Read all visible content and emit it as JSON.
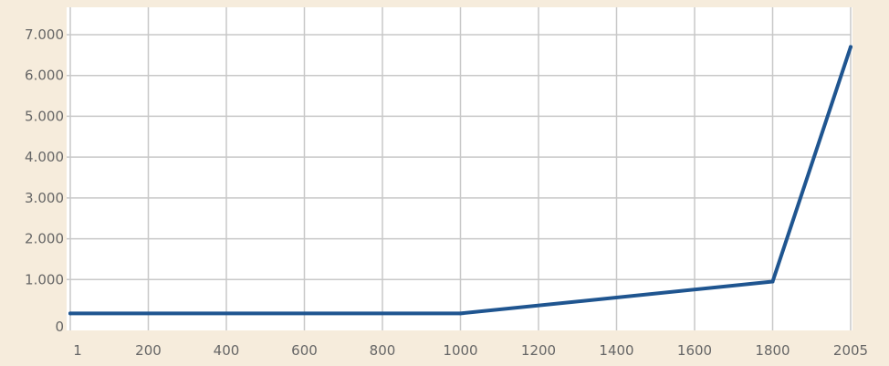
{
  "chart_data": {
    "type": "line",
    "title": "",
    "xlabel": "",
    "ylabel": "",
    "x_ticks": [
      "1",
      "200",
      "400",
      "600",
      "800",
      "1000",
      "1200",
      "1400",
      "1600",
      "1800",
      "2005"
    ],
    "y_ticks": [
      "0",
      "1.000",
      "2.000",
      "3.000",
      "4.000",
      "5.000",
      "6.000",
      "7.000"
    ],
    "ylim": [
      0,
      7000
    ],
    "grid": true,
    "colors": {
      "background": "#f6ecdc",
      "plot_area": "#ffffff",
      "grid": "#c8c8c8",
      "line": "#1f5590",
      "tick_text": "#666666"
    },
    "series": [
      {
        "x": [
          1,
          1000,
          1800,
          2005
        ],
        "y": [
          170,
          170,
          950,
          6700
        ]
      }
    ]
  }
}
